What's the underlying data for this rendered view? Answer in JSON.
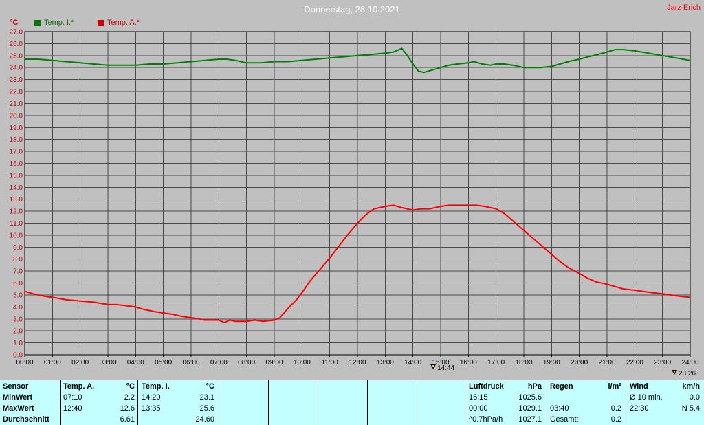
{
  "header": {
    "title": "Donnerstag, 28.10.2021",
    "user": "Jarz Erich"
  },
  "legend": {
    "unit_left": "°C",
    "unit_color": "#d00000",
    "items": [
      {
        "label": "Temp. I.*",
        "color": "#007800"
      },
      {
        "label": "Temp. A.*",
        "color": "#d00000"
      }
    ]
  },
  "chart_data": {
    "type": "line",
    "title": "Donnerstag, 28.10.2021",
    "ylabel": "°C",
    "ylim": [
      0,
      27
    ],
    "ytick_step": 1,
    "xlim": [
      0,
      24
    ],
    "grid": true,
    "xtick_labels": [
      "00:00",
      "01:00",
      "02:00",
      "03:00",
      "04:00",
      "05:00",
      "06:00",
      "07:00",
      "08:00",
      "09:00",
      "10:00",
      "11:00",
      "12:00",
      "13:00",
      "14:00",
      "15:00",
      "16:00",
      "17:00",
      "18:00",
      "19:00",
      "20:00",
      "21:00",
      "22:00",
      "23:00",
      "24:00"
    ],
    "series": [
      {
        "name": "Temp. I.*",
        "color": "#008000",
        "points": [
          [
            0,
            24.7
          ],
          [
            0.5,
            24.7
          ],
          [
            1,
            24.6
          ],
          [
            1.5,
            24.5
          ],
          [
            2,
            24.4
          ],
          [
            2.5,
            24.3
          ],
          [
            3,
            24.2
          ],
          [
            3.5,
            24.2
          ],
          [
            4,
            24.2
          ],
          [
            4.5,
            24.3
          ],
          [
            5,
            24.3
          ],
          [
            5.5,
            24.4
          ],
          [
            6,
            24.5
          ],
          [
            6.5,
            24.6
          ],
          [
            7,
            24.7
          ],
          [
            7.3,
            24.7
          ],
          [
            7.6,
            24.6
          ],
          [
            8,
            24.4
          ],
          [
            8.5,
            24.4
          ],
          [
            9,
            24.5
          ],
          [
            9.5,
            24.5
          ],
          [
            10,
            24.6
          ],
          [
            10.5,
            24.7
          ],
          [
            11,
            24.8
          ],
          [
            11.5,
            24.9
          ],
          [
            12,
            25.0
          ],
          [
            12.5,
            25.1
          ],
          [
            13,
            25.2
          ],
          [
            13.3,
            25.3
          ],
          [
            13.6,
            25.6
          ],
          [
            13.8,
            25.0
          ],
          [
            14,
            24.3
          ],
          [
            14.2,
            23.7
          ],
          [
            14.4,
            23.6
          ],
          [
            14.7,
            23.8
          ],
          [
            15,
            24.0
          ],
          [
            15.3,
            24.2
          ],
          [
            15.6,
            24.3
          ],
          [
            16,
            24.4
          ],
          [
            16.2,
            24.5
          ],
          [
            16.5,
            24.3
          ],
          [
            16.8,
            24.2
          ],
          [
            17,
            24.3
          ],
          [
            17.3,
            24.3
          ],
          [
            17.6,
            24.2
          ],
          [
            18,
            24.0
          ],
          [
            18.3,
            24.0
          ],
          [
            18.6,
            24.0
          ],
          [
            19,
            24.1
          ],
          [
            19.3,
            24.3
          ],
          [
            19.6,
            24.5
          ],
          [
            20,
            24.7
          ],
          [
            20.5,
            25.0
          ],
          [
            21,
            25.3
          ],
          [
            21.3,
            25.5
          ],
          [
            21.6,
            25.5
          ],
          [
            22,
            25.4
          ],
          [
            22.5,
            25.2
          ],
          [
            23,
            25.0
          ],
          [
            23.5,
            24.8
          ],
          [
            24,
            24.6
          ]
        ]
      },
      {
        "name": "Temp. A.*",
        "color": "#ff0000",
        "points": [
          [
            0,
            5.3
          ],
          [
            0.3,
            5.1
          ],
          [
            0.7,
            4.9
          ],
          [
            1,
            4.8
          ],
          [
            1.5,
            4.6
          ],
          [
            2,
            4.5
          ],
          [
            2.5,
            4.4
          ],
          [
            3,
            4.2
          ],
          [
            3.3,
            4.2
          ],
          [
            3.7,
            4.1
          ],
          [
            4,
            4.0
          ],
          [
            4.3,
            3.8
          ],
          [
            4.7,
            3.6
          ],
          [
            5,
            3.5
          ],
          [
            5.3,
            3.4
          ],
          [
            5.7,
            3.2
          ],
          [
            6,
            3.1
          ],
          [
            6.3,
            3.0
          ],
          [
            6.5,
            2.9
          ],
          [
            7,
            2.9
          ],
          [
            7.2,
            2.7
          ],
          [
            7.4,
            2.9
          ],
          [
            7.6,
            2.8
          ],
          [
            8,
            2.8
          ],
          [
            8.3,
            2.9
          ],
          [
            8.6,
            2.8
          ],
          [
            9,
            2.9
          ],
          [
            9.2,
            3.1
          ],
          [
            9.5,
            3.9
          ],
          [
            9.8,
            4.6
          ],
          [
            10,
            5.2
          ],
          [
            10.3,
            6.2
          ],
          [
            10.6,
            7.0
          ],
          [
            11,
            8.1
          ],
          [
            11.3,
            9.0
          ],
          [
            11.6,
            9.9
          ],
          [
            12,
            11.0
          ],
          [
            12.3,
            11.7
          ],
          [
            12.6,
            12.2
          ],
          [
            13,
            12.4
          ],
          [
            13.3,
            12.5
          ],
          [
            13.6,
            12.3
          ],
          [
            14,
            12.1
          ],
          [
            14.3,
            12.2
          ],
          [
            14.6,
            12.2
          ],
          [
            15,
            12.4
          ],
          [
            15.3,
            12.5
          ],
          [
            15.6,
            12.5
          ],
          [
            16,
            12.5
          ],
          [
            16.3,
            12.5
          ],
          [
            16.6,
            12.4
          ],
          [
            17,
            12.2
          ],
          [
            17.3,
            11.8
          ],
          [
            17.6,
            11.2
          ],
          [
            18,
            10.4
          ],
          [
            18.3,
            9.8
          ],
          [
            18.6,
            9.2
          ],
          [
            19,
            8.4
          ],
          [
            19.3,
            7.8
          ],
          [
            19.6,
            7.3
          ],
          [
            20,
            6.8
          ],
          [
            20.3,
            6.4
          ],
          [
            20.6,
            6.1
          ],
          [
            21,
            5.9
          ],
          [
            21.3,
            5.7
          ],
          [
            21.6,
            5.5
          ],
          [
            22,
            5.4
          ],
          [
            22.3,
            5.3
          ],
          [
            22.6,
            5.2
          ],
          [
            23,
            5.1
          ],
          [
            23.3,
            5.0
          ],
          [
            23.6,
            4.9
          ],
          [
            24,
            4.8
          ]
        ]
      }
    ],
    "markers": [
      {
        "time": "14:44",
        "hour": 14.73
      },
      {
        "time": "23:26",
        "hour": 23.43
      }
    ]
  },
  "table": {
    "row_labels": [
      "Sensor",
      "MinWert",
      "MaxWert",
      "Durchschnitt"
    ],
    "columns": [
      {
        "name": "Temp. A.",
        "unit": "°C",
        "min_time": "07:10",
        "min": "2.2",
        "max_time": "12:40",
        "max": "12.6",
        "avg_label": "",
        "avg": "6.61"
      },
      {
        "name": "Temp. I.",
        "unit": "°C",
        "min_time": "14:20",
        "min": "23.1",
        "max_time": "13:35",
        "max": "25.6",
        "avg_label": "",
        "avg": "24.60"
      },
      {
        "name": "Luftdruck",
        "unit": "hPa",
        "min_time": "16:15",
        "min": "1025.6",
        "max_time": "00:00",
        "max": "1029.1",
        "avg_label": "^0.7hPa/h",
        "avg": "1027.1"
      },
      {
        "name": "Regen",
        "unit": "l/m²",
        "min_time": "",
        "min": "",
        "max_time": "03:40",
        "max": "0.2",
        "avg_label": "Gesamt:",
        "avg": "0.2"
      },
      {
        "name": "Wind",
        "unit": "km/h",
        "min_time": "Ø 10 min.",
        "min": "0.0",
        "max_time": "22:30",
        "max": "N 5.4",
        "avg_label": "",
        "avg": ""
      }
    ]
  }
}
